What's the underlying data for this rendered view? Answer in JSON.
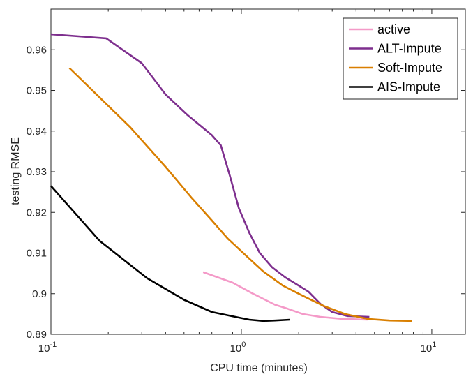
{
  "chart_data": {
    "type": "line",
    "xscale": "log",
    "xlabel": "CPU time (minutes)",
    "ylabel": "testing RMSE",
    "xlim": [
      0.1,
      15
    ],
    "ylim": [
      0.89,
      0.97
    ],
    "xticks": [
      {
        "value": 0.1,
        "base": "10",
        "exp": "-1"
      },
      {
        "value": 1,
        "base": "10",
        "exp": "0"
      },
      {
        "value": 10,
        "base": "10",
        "exp": "1"
      }
    ],
    "yticks": [
      "0.89",
      "0.9",
      "0.91",
      "0.92",
      "0.93",
      "0.94",
      "0.95",
      "0.96"
    ],
    "legend_position": "top-right",
    "series": [
      {
        "name": "active",
        "color": "#f49ac8",
        "x": [
          0.63,
          0.9,
          1.15,
          1.5,
          1.75,
          2.1,
          2.6,
          3.4,
          4.6
        ],
        "y": [
          0.9053,
          0.9027,
          0.9,
          0.8973,
          0.8963,
          0.895,
          0.8943,
          0.8938,
          0.8936
        ]
      },
      {
        "name": "ALT-Impute",
        "color": "#7e2f8e",
        "x": [
          0.1,
          0.195,
          0.3,
          0.4,
          0.52,
          0.7,
          0.78,
          0.87,
          0.97,
          1.1,
          1.25,
          1.45,
          1.7,
          2.0,
          2.25,
          2.6,
          3.0,
          3.6,
          4.7
        ],
        "y": [
          0.9638,
          0.9628,
          0.9567,
          0.949,
          0.944,
          0.939,
          0.9365,
          0.929,
          0.921,
          0.915,
          0.91,
          0.9065,
          0.904,
          0.902,
          0.9005,
          0.8975,
          0.8955,
          0.8945,
          0.8943
        ]
      },
      {
        "name": "Soft-Impute",
        "color": "#d97f00",
        "x": [
          0.125,
          0.26,
          0.4,
          0.55,
          0.7,
          0.85,
          1.05,
          1.3,
          1.65,
          2.1,
          2.7,
          3.5,
          4.6,
          6.0,
          7.9
        ],
        "y": [
          0.9555,
          0.941,
          0.9312,
          0.9235,
          0.918,
          0.9135,
          0.9095,
          0.9055,
          0.902,
          0.8995,
          0.897,
          0.895,
          0.8938,
          0.8934,
          0.8933
        ]
      },
      {
        "name": "AIS-Impute",
        "color": "#000000",
        "x": [
          0.1,
          0.18,
          0.32,
          0.5,
          0.7,
          0.95,
          1.1,
          1.3,
          1.5,
          1.8
        ],
        "y": [
          0.9265,
          0.913,
          0.9038,
          0.8985,
          0.8955,
          0.8942,
          0.8936,
          0.8933,
          0.8934,
          0.8936
        ]
      }
    ]
  }
}
